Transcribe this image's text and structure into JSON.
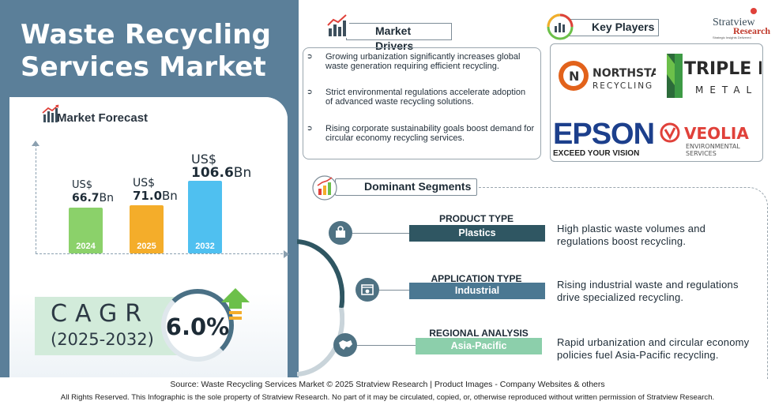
{
  "title": "Waste Recycling Services Market",
  "brand": {
    "name": "Stratview",
    "name2": "Research",
    "tagline": "Strategic Insights Delivered"
  },
  "market_forecast": {
    "heading": "Market Forecast",
    "bars": [
      {
        "year": "2024",
        "currency": "US$",
        "value": "66.7",
        "unit": "Bn",
        "amount": 66.7,
        "color": "#8bd16a"
      },
      {
        "year": "2025",
        "currency": "US$",
        "value": "71.0",
        "unit": "Bn",
        "amount": 71.0,
        "color": "#f4ad2a"
      },
      {
        "year": "2032",
        "currency": "US$",
        "value": "106.6",
        "unit": "Bn",
        "amount": 106.6,
        "color": "#4fc0f0"
      }
    ]
  },
  "cagr": {
    "label": "CAGR",
    "period": "(2025-2032)",
    "value": "6.0%"
  },
  "market_drivers": {
    "heading": "Market Drivers",
    "items": [
      "Growing urbanization significantly increases global waste generation requiring efficient recycling.",
      "Strict environmental regulations accelerate adoption of advanced waste recycling solutions.",
      "Rising corporate sustainability goals boost demand for circular economy recycling services."
    ]
  },
  "key_players": {
    "heading": "Key Players",
    "logos": [
      {
        "name": "NORTHSTAR",
        "sub": "RECYCLING",
        "icon": "northstar-logo"
      },
      {
        "name": "TRIPLE M",
        "sub": "METAL",
        "icon": "triple-m-logo"
      },
      {
        "name": "EPSON",
        "sub": "EXCEED YOUR VISION",
        "icon": "epson-logo"
      },
      {
        "name": "VEOLIA",
        "sub": "ENVIRONMENTAL SERVICES",
        "icon": "veolia-logo"
      }
    ]
  },
  "dominant_segments": {
    "heading": "Dominant Segments",
    "items": [
      {
        "type": "PRODUCT TYPE",
        "value": "Plastics",
        "desc1": "High plastic waste volumes and",
        "desc2": "regulations boost recycling.",
        "color": "#2f5662",
        "icon": "box-gear-icon"
      },
      {
        "type": "APPLICATION TYPE",
        "value": "Industrial",
        "desc1": "Rising industrial waste and regulations",
        "desc2": "drive specialized recycling.",
        "color": "#4b7892",
        "icon": "window-gear-icon"
      },
      {
        "type": "REGIONAL ANALYSIS",
        "value": "Asia-Pacific",
        "desc1": "Rapid urbanization and circular economy",
        "desc2": "policies fuel Asia-Pacific recycling.",
        "color": "#8ccfab",
        "icon": "map-icon"
      }
    ]
  },
  "footer": {
    "source": "Source:   Waste Recycling Services  Market © 2025 Stratview Research | Product Images  - Company Websites & others",
    "rights": "All Rights Reserved. This Infographic is the sole property of Stratview Research. No part of it may be circulated, copied, or, otherwise reproduced without written permission of Stratview Research."
  }
}
